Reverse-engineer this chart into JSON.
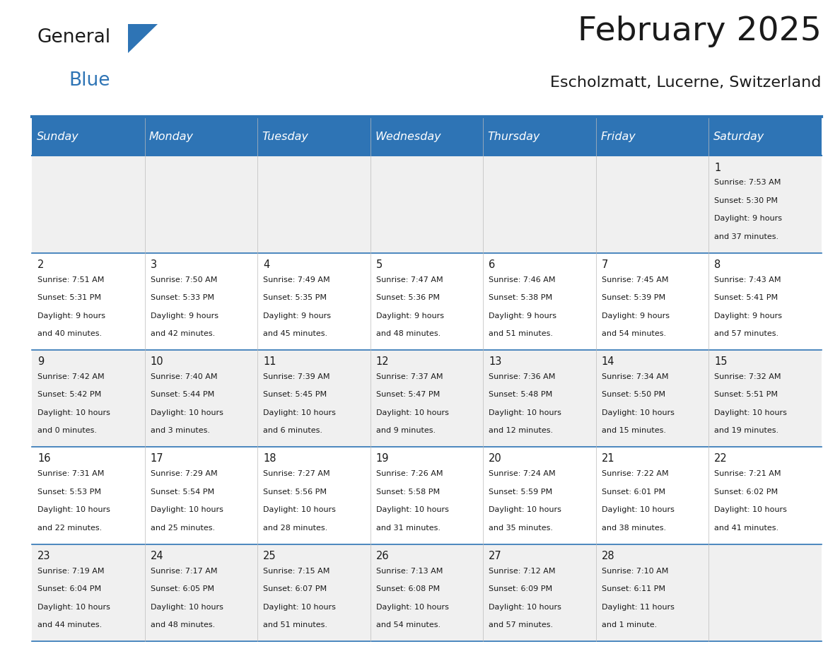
{
  "title": "February 2025",
  "subtitle": "Escholzmatt, Lucerne, Switzerland",
  "header_bg": "#2E74B5",
  "header_text_color": "#FFFFFF",
  "header_font_size": 11.5,
  "day_names": [
    "Sunday",
    "Monday",
    "Tuesday",
    "Wednesday",
    "Thursday",
    "Friday",
    "Saturday"
  ],
  "title_font_size": 34,
  "subtitle_font_size": 16,
  "cell_text_font_size": 8.0,
  "day_num_font_size": 10.5,
  "row_bg": [
    "#F0F0F0",
    "#FFFFFF",
    "#F0F0F0",
    "#FFFFFF",
    "#F0F0F0"
  ],
  "border_color": "#2E74B5",
  "cell_border_color": "#2E74B5",
  "num_cols": 7,
  "logo_general_color": "#1a1a1a",
  "logo_blue_color": "#2E74B5",
  "logo_triangle_color": "#2E74B5",
  "calendar_data": [
    [
      null,
      null,
      null,
      null,
      null,
      null,
      {
        "day": 1,
        "sunrise": "7:53 AM",
        "sunset": "5:30 PM",
        "daylight_line1": "Daylight: 9 hours",
        "daylight_line2": "and 37 minutes."
      }
    ],
    [
      {
        "day": 2,
        "sunrise": "7:51 AM",
        "sunset": "5:31 PM",
        "daylight_line1": "Daylight: 9 hours",
        "daylight_line2": "and 40 minutes."
      },
      {
        "day": 3,
        "sunrise": "7:50 AM",
        "sunset": "5:33 PM",
        "daylight_line1": "Daylight: 9 hours",
        "daylight_line2": "and 42 minutes."
      },
      {
        "day": 4,
        "sunrise": "7:49 AM",
        "sunset": "5:35 PM",
        "daylight_line1": "Daylight: 9 hours",
        "daylight_line2": "and 45 minutes."
      },
      {
        "day": 5,
        "sunrise": "7:47 AM",
        "sunset": "5:36 PM",
        "daylight_line1": "Daylight: 9 hours",
        "daylight_line2": "and 48 minutes."
      },
      {
        "day": 6,
        "sunrise": "7:46 AM",
        "sunset": "5:38 PM",
        "daylight_line1": "Daylight: 9 hours",
        "daylight_line2": "and 51 minutes."
      },
      {
        "day": 7,
        "sunrise": "7:45 AM",
        "sunset": "5:39 PM",
        "daylight_line1": "Daylight: 9 hours",
        "daylight_line2": "and 54 minutes."
      },
      {
        "day": 8,
        "sunrise": "7:43 AM",
        "sunset": "5:41 PM",
        "daylight_line1": "Daylight: 9 hours",
        "daylight_line2": "and 57 minutes."
      }
    ],
    [
      {
        "day": 9,
        "sunrise": "7:42 AM",
        "sunset": "5:42 PM",
        "daylight_line1": "Daylight: 10 hours",
        "daylight_line2": "and 0 minutes."
      },
      {
        "day": 10,
        "sunrise": "7:40 AM",
        "sunset": "5:44 PM",
        "daylight_line1": "Daylight: 10 hours",
        "daylight_line2": "and 3 minutes."
      },
      {
        "day": 11,
        "sunrise": "7:39 AM",
        "sunset": "5:45 PM",
        "daylight_line1": "Daylight: 10 hours",
        "daylight_line2": "and 6 minutes."
      },
      {
        "day": 12,
        "sunrise": "7:37 AM",
        "sunset": "5:47 PM",
        "daylight_line1": "Daylight: 10 hours",
        "daylight_line2": "and 9 minutes."
      },
      {
        "day": 13,
        "sunrise": "7:36 AM",
        "sunset": "5:48 PM",
        "daylight_line1": "Daylight: 10 hours",
        "daylight_line2": "and 12 minutes."
      },
      {
        "day": 14,
        "sunrise": "7:34 AM",
        "sunset": "5:50 PM",
        "daylight_line1": "Daylight: 10 hours",
        "daylight_line2": "and 15 minutes."
      },
      {
        "day": 15,
        "sunrise": "7:32 AM",
        "sunset": "5:51 PM",
        "daylight_line1": "Daylight: 10 hours",
        "daylight_line2": "and 19 minutes."
      }
    ],
    [
      {
        "day": 16,
        "sunrise": "7:31 AM",
        "sunset": "5:53 PM",
        "daylight_line1": "Daylight: 10 hours",
        "daylight_line2": "and 22 minutes."
      },
      {
        "day": 17,
        "sunrise": "7:29 AM",
        "sunset": "5:54 PM",
        "daylight_line1": "Daylight: 10 hours",
        "daylight_line2": "and 25 minutes."
      },
      {
        "day": 18,
        "sunrise": "7:27 AM",
        "sunset": "5:56 PM",
        "daylight_line1": "Daylight: 10 hours",
        "daylight_line2": "and 28 minutes."
      },
      {
        "day": 19,
        "sunrise": "7:26 AM",
        "sunset": "5:58 PM",
        "daylight_line1": "Daylight: 10 hours",
        "daylight_line2": "and 31 minutes."
      },
      {
        "day": 20,
        "sunrise": "7:24 AM",
        "sunset": "5:59 PM",
        "daylight_line1": "Daylight: 10 hours",
        "daylight_line2": "and 35 minutes."
      },
      {
        "day": 21,
        "sunrise": "7:22 AM",
        "sunset": "6:01 PM",
        "daylight_line1": "Daylight: 10 hours",
        "daylight_line2": "and 38 minutes."
      },
      {
        "day": 22,
        "sunrise": "7:21 AM",
        "sunset": "6:02 PM",
        "daylight_line1": "Daylight: 10 hours",
        "daylight_line2": "and 41 minutes."
      }
    ],
    [
      {
        "day": 23,
        "sunrise": "7:19 AM",
        "sunset": "6:04 PM",
        "daylight_line1": "Daylight: 10 hours",
        "daylight_line2": "and 44 minutes."
      },
      {
        "day": 24,
        "sunrise": "7:17 AM",
        "sunset": "6:05 PM",
        "daylight_line1": "Daylight: 10 hours",
        "daylight_line2": "and 48 minutes."
      },
      {
        "day": 25,
        "sunrise": "7:15 AM",
        "sunset": "6:07 PM",
        "daylight_line1": "Daylight: 10 hours",
        "daylight_line2": "and 51 minutes."
      },
      {
        "day": 26,
        "sunrise": "7:13 AM",
        "sunset": "6:08 PM",
        "daylight_line1": "Daylight: 10 hours",
        "daylight_line2": "and 54 minutes."
      },
      {
        "day": 27,
        "sunrise": "7:12 AM",
        "sunset": "6:09 PM",
        "daylight_line1": "Daylight: 10 hours",
        "daylight_line2": "and 57 minutes."
      },
      {
        "day": 28,
        "sunrise": "7:10 AM",
        "sunset": "6:11 PM",
        "daylight_line1": "Daylight: 11 hours",
        "daylight_line2": "and 1 minute."
      },
      null
    ]
  ]
}
